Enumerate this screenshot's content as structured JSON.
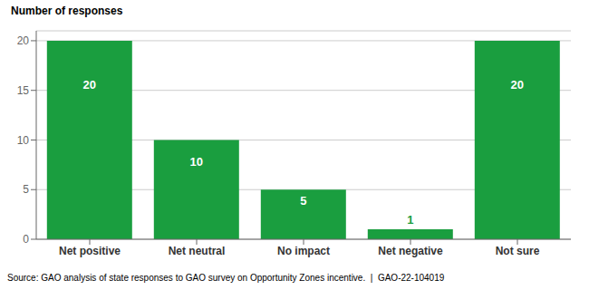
{
  "chart_data": {
    "type": "bar",
    "categories": [
      "Net positive",
      "Net neutral",
      "No impact",
      "Net negative",
      "Not sure"
    ],
    "values": [
      20,
      10,
      5,
      1,
      20
    ],
    "color": "#1a9e3f",
    "ylabel": "Number of responses",
    "ylim": [
      0,
      21
    ],
    "yticks": [
      0,
      5,
      10,
      15,
      20
    ],
    "grid": true,
    "data_labels": true,
    "annotations": [
      "Source: GAO analysis of state responses to GAO survey on Opportunity Zones incentive.  |  GAO-22-104019"
    ]
  }
}
